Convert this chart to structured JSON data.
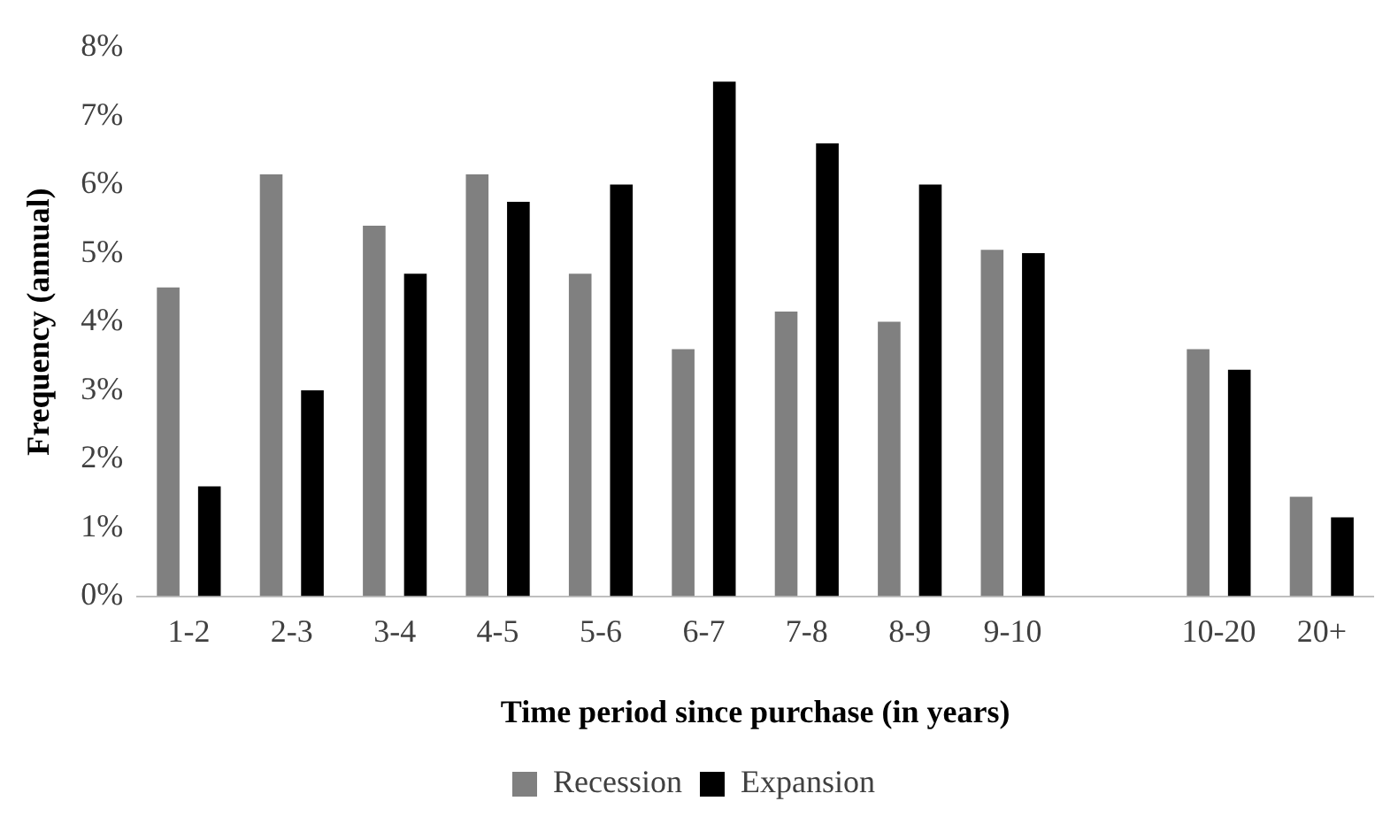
{
  "chart_data": {
    "type": "bar",
    "xlabel": "Time period since purchase (in years)",
    "ylabel": "Frequency (annual)",
    "categories": [
      "1-2",
      "2-3",
      "3-4",
      "4-5",
      "5-6",
      "6-7",
      "7-8",
      "8-9",
      "9-10",
      null,
      "10-20",
      "20+"
    ],
    "series": [
      {
        "name": "Recession",
        "color": "#808080",
        "values": [
          4.5,
          6.15,
          5.4,
          6.15,
          4.7,
          3.6,
          4.15,
          4.0,
          5.05,
          null,
          3.6,
          1.45
        ]
      },
      {
        "name": "Expansion",
        "color": "#000000",
        "values": [
          1.6,
          3.0,
          4.7,
          5.75,
          6.0,
          7.5,
          6.6,
          6.0,
          5.0,
          null,
          3.3,
          1.15
        ]
      }
    ],
    "ylim": [
      0,
      8
    ],
    "yticks": [
      {
        "value": 0,
        "label": "0%"
      },
      {
        "value": 1,
        "label": "1%"
      },
      {
        "value": 2,
        "label": "2%"
      },
      {
        "value": 3,
        "label": "3%"
      },
      {
        "value": 4,
        "label": "4%"
      },
      {
        "value": 5,
        "label": "5%"
      },
      {
        "value": 6,
        "label": "6%"
      },
      {
        "value": 7,
        "label": "7%"
      },
      {
        "value": 8,
        "label": "8%"
      }
    ],
    "grid": false,
    "legend": "bottom"
  }
}
